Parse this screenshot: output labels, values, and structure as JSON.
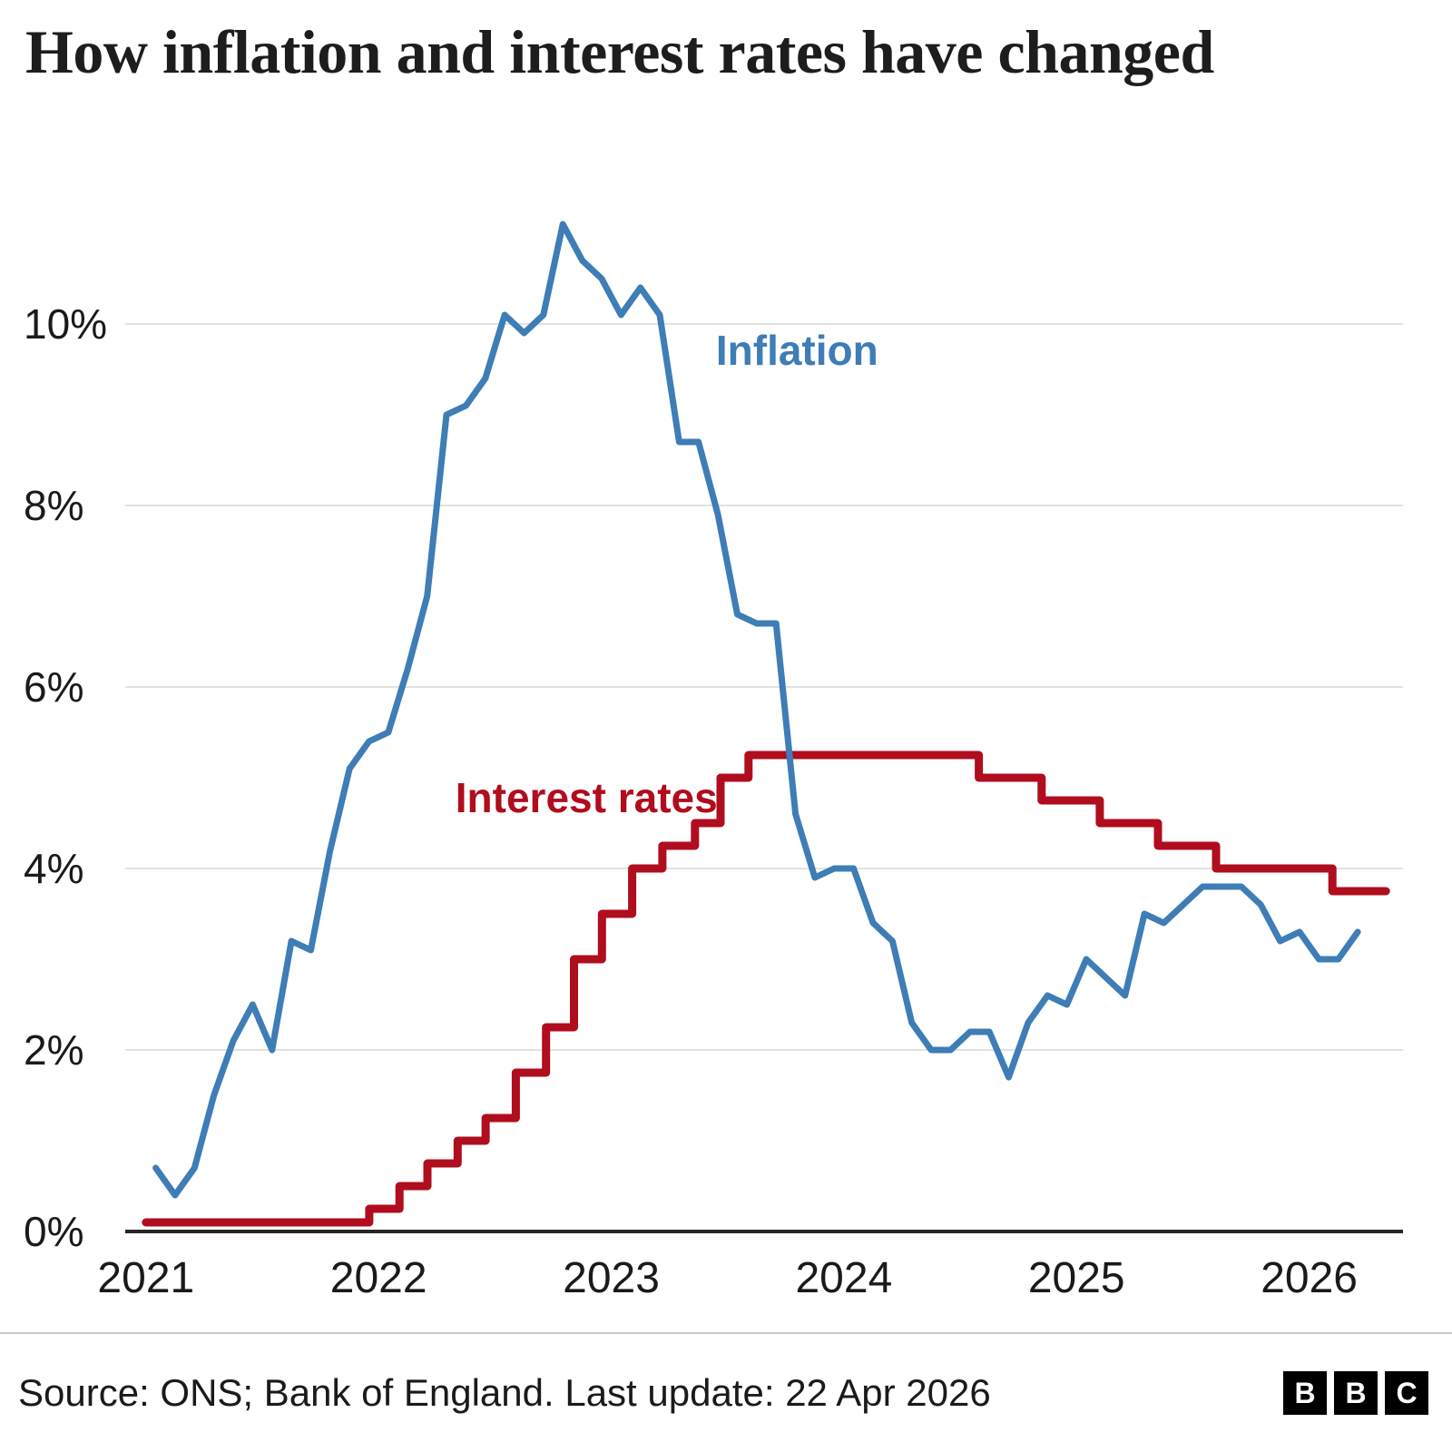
{
  "title": "How inflation and interest rates have changed",
  "footer": {
    "source_text": "Source: ONS; Bank of England. Last update: 22 Apr 2026",
    "logo_letters": [
      "B",
      "B",
      "C"
    ]
  },
  "colors": {
    "inflation": "#3E7DB6",
    "interest": "#B00D1E",
    "grid": "#e2e2e2",
    "baseline": "#262626",
    "text": "#1a1a1a"
  },
  "chart_data": {
    "type": "line",
    "title": "How inflation and interest rates have changed",
    "xlabel": "",
    "ylabel": "",
    "grid": true,
    "legend_position": "inline-labels",
    "xlim": [
      2020.95,
      2026.38
    ],
    "ylim": [
      0,
      11.27
    ],
    "yticks": [
      {
        "label": "0%",
        "value": 0
      },
      {
        "label": "2%",
        "value": 2
      },
      {
        "label": "4%",
        "value": 4
      },
      {
        "label": "6%",
        "value": 6
      },
      {
        "label": "8%",
        "value": 8
      },
      {
        "label": "10%",
        "value": 10
      }
    ],
    "xticks": [
      {
        "label": "2021",
        "value": 2021
      },
      {
        "label": "2022",
        "value": 2022
      },
      {
        "label": "2023",
        "value": 2023
      },
      {
        "label": "2024",
        "value": 2024
      },
      {
        "label": "2025",
        "value": 2025
      },
      {
        "label": "2026",
        "value": 2026
      }
    ],
    "series": [
      {
        "name": "Interest rates",
        "type": "step",
        "color": "#B00D1E",
        "label": {
          "text": "Interest rates",
          "x": 2022.33,
          "y": 4.62
        },
        "steps": [
          [
            2021.0,
            0.1
          ],
          [
            2021.96,
            0.25
          ],
          [
            2022.09,
            0.5
          ],
          [
            2022.21,
            0.75
          ],
          [
            2022.34,
            1.0
          ],
          [
            2022.46,
            1.25
          ],
          [
            2022.59,
            1.75
          ],
          [
            2022.72,
            2.25
          ],
          [
            2022.84,
            3.0
          ],
          [
            2022.96,
            3.5
          ],
          [
            2023.09,
            4.0
          ],
          [
            2023.22,
            4.25
          ],
          [
            2023.36,
            4.5
          ],
          [
            2023.47,
            5.0
          ],
          [
            2023.59,
            5.25
          ],
          [
            2024.58,
            5.0
          ],
          [
            2024.85,
            4.75
          ],
          [
            2025.1,
            4.5
          ],
          [
            2025.35,
            4.25
          ],
          [
            2025.6,
            4.0
          ],
          [
            2026.1,
            3.75
          ],
          [
            2026.33,
            3.75
          ]
        ]
      },
      {
        "name": "Inflation",
        "type": "line",
        "color": "#3E7DB6",
        "label": {
          "text": "Inflation",
          "x": 2023.45,
          "y": 9.55
        },
        "x_start": 2021.042,
        "x_step": 0.083333,
        "values": [
          0.7,
          0.4,
          0.7,
          1.5,
          2.1,
          2.5,
          2.0,
          3.2,
          3.1,
          4.2,
          5.1,
          5.4,
          5.5,
          6.2,
          7.0,
          9.0,
          9.1,
          9.4,
          10.1,
          9.9,
          10.1,
          11.1,
          10.7,
          10.5,
          10.1,
          10.4,
          10.1,
          8.7,
          8.7,
          7.9,
          6.8,
          6.7,
          6.7,
          4.6,
          3.9,
          4.0,
          4.0,
          3.4,
          3.2,
          2.3,
          2.0,
          2.0,
          2.2,
          2.2,
          1.7,
          2.3,
          2.6,
          2.5,
          3.0,
          2.8,
          2.6,
          3.5,
          3.4,
          3.6,
          3.8,
          3.8,
          3.8,
          3.6,
          3.2,
          3.3,
          3.0,
          3.0,
          3.3
        ]
      }
    ]
  }
}
